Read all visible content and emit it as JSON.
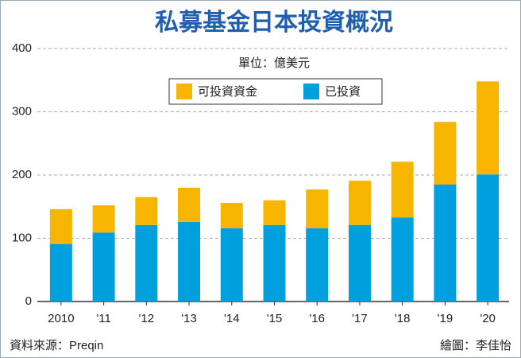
{
  "chart_data": {
    "type": "stacked_bar",
    "title": "私募基金日本投資概況",
    "subtitle": "單位：億美元",
    "categories": [
      "2010",
      "'11",
      "'12",
      "'13",
      "'14",
      "'15",
      "'16",
      "'17",
      "'18",
      "'19",
      "'20"
    ],
    "series": [
      {
        "name": "可投資資金",
        "color": "#f7b500",
        "values": [
          55,
          43,
          44,
          54,
          40,
          39,
          61,
          70,
          88,
          99,
          147
        ]
      },
      {
        "name": "已投資",
        "color": "#00a0df",
        "values": [
          91,
          109,
          121,
          126,
          116,
          121,
          116,
          121,
          133,
          185,
          201
        ]
      }
    ],
    "ylim": [
      0,
      400
    ],
    "yticks": [
      0,
      100,
      200,
      300,
      400
    ],
    "grid": true,
    "source": "資料來源：Preqin",
    "credit": "繪圖：李佳怡"
  }
}
